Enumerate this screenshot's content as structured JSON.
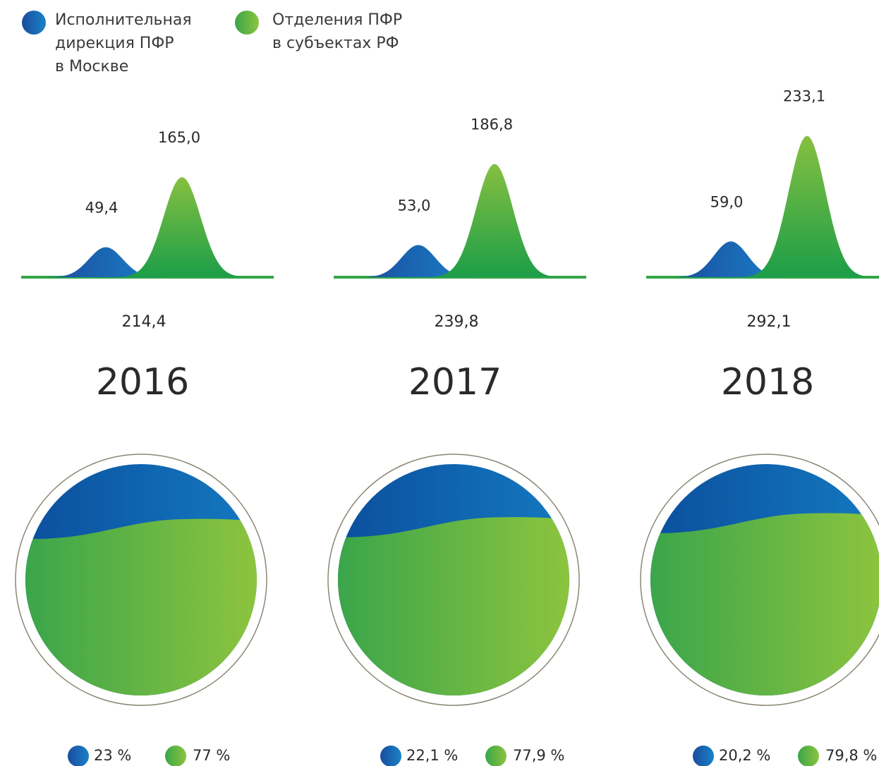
{
  "chart_data": {
    "type": "bell",
    "categories": [
      "2016",
      "2017",
      "2018"
    ],
    "series": [
      {
        "name": "Исполнительная\nдирекция ПФР\nв Москве",
        "color": "#0b5bab",
        "values": [
          49.4,
          53.0,
          59.0
        ],
        "value_labels": [
          "49,4",
          "53,0",
          "59,0"
        ],
        "shares": [
          23,
          22.1,
          20.2
        ],
        "share_labels": [
          "23 %",
          "22,1 %",
          "20,2 %"
        ]
      },
      {
        "name": "Отделения ПФР\nв субъектах РФ",
        "color": "#3aa84a",
        "values": [
          165.0,
          186.8,
          233.1
        ],
        "value_labels": [
          "165,0",
          "186,8",
          "233,1"
        ],
        "shares": [
          77,
          77.9,
          79.8
        ],
        "share_labels": [
          "77 %",
          "77,9 %",
          "79,8 %"
        ]
      }
    ],
    "totals": [
      214.4,
      239.8,
      292.1
    ],
    "total_labels": [
      "214,4",
      "239,8",
      "292,1"
    ]
  }
}
